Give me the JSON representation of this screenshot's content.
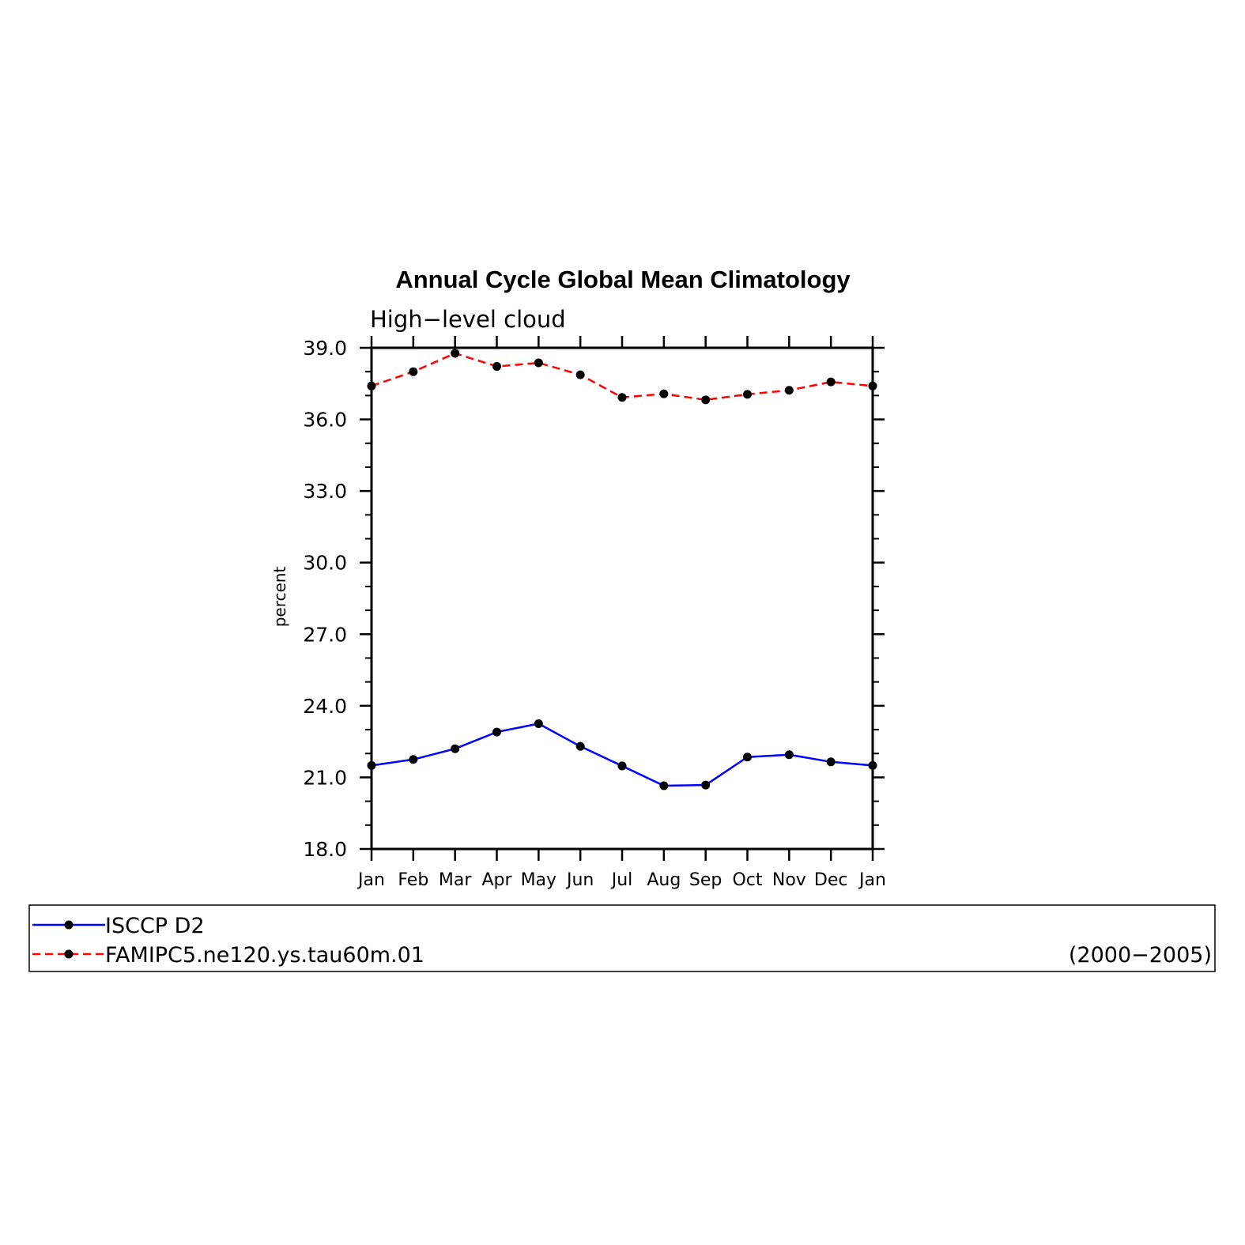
{
  "chart_data": {
    "type": "line",
    "title": "Annual Cycle Global Mean Climatology",
    "subtitle": "High−level cloud",
    "ylabel": "percent",
    "ylim": [
      18.0,
      39.0
    ],
    "yticks": [
      "18.0",
      "21.0",
      "24.0",
      "27.0",
      "30.0",
      "33.0",
      "36.0",
      "39.0"
    ],
    "categories": [
      "Jan",
      "Feb",
      "Mar",
      "Apr",
      "May",
      "Jun",
      "Jul",
      "Aug",
      "Sep",
      "Oct",
      "Nov",
      "Dec",
      "Jan"
    ],
    "series": [
      {
        "name": "ISCCP D2",
        "color": "#0000ff",
        "dashed": false,
        "values": [
          21.5,
          21.75,
          22.2,
          22.9,
          23.25,
          22.3,
          21.48,
          20.65,
          20.68,
          21.85,
          21.95,
          21.65,
          21.5
        ]
      },
      {
        "name": "FAMIPC5.ne120.ys.tau60m.01",
        "color": "#ff0000",
        "dashed": true,
        "values": [
          37.4,
          38.0,
          38.77,
          38.22,
          38.37,
          37.87,
          36.92,
          37.07,
          36.82,
          37.05,
          37.22,
          37.57,
          37.4
        ]
      }
    ],
    "legend": {
      "placement": "bottom",
      "period": "(2000−2005)"
    },
    "marker_color": "#000000",
    "grid": false
  }
}
